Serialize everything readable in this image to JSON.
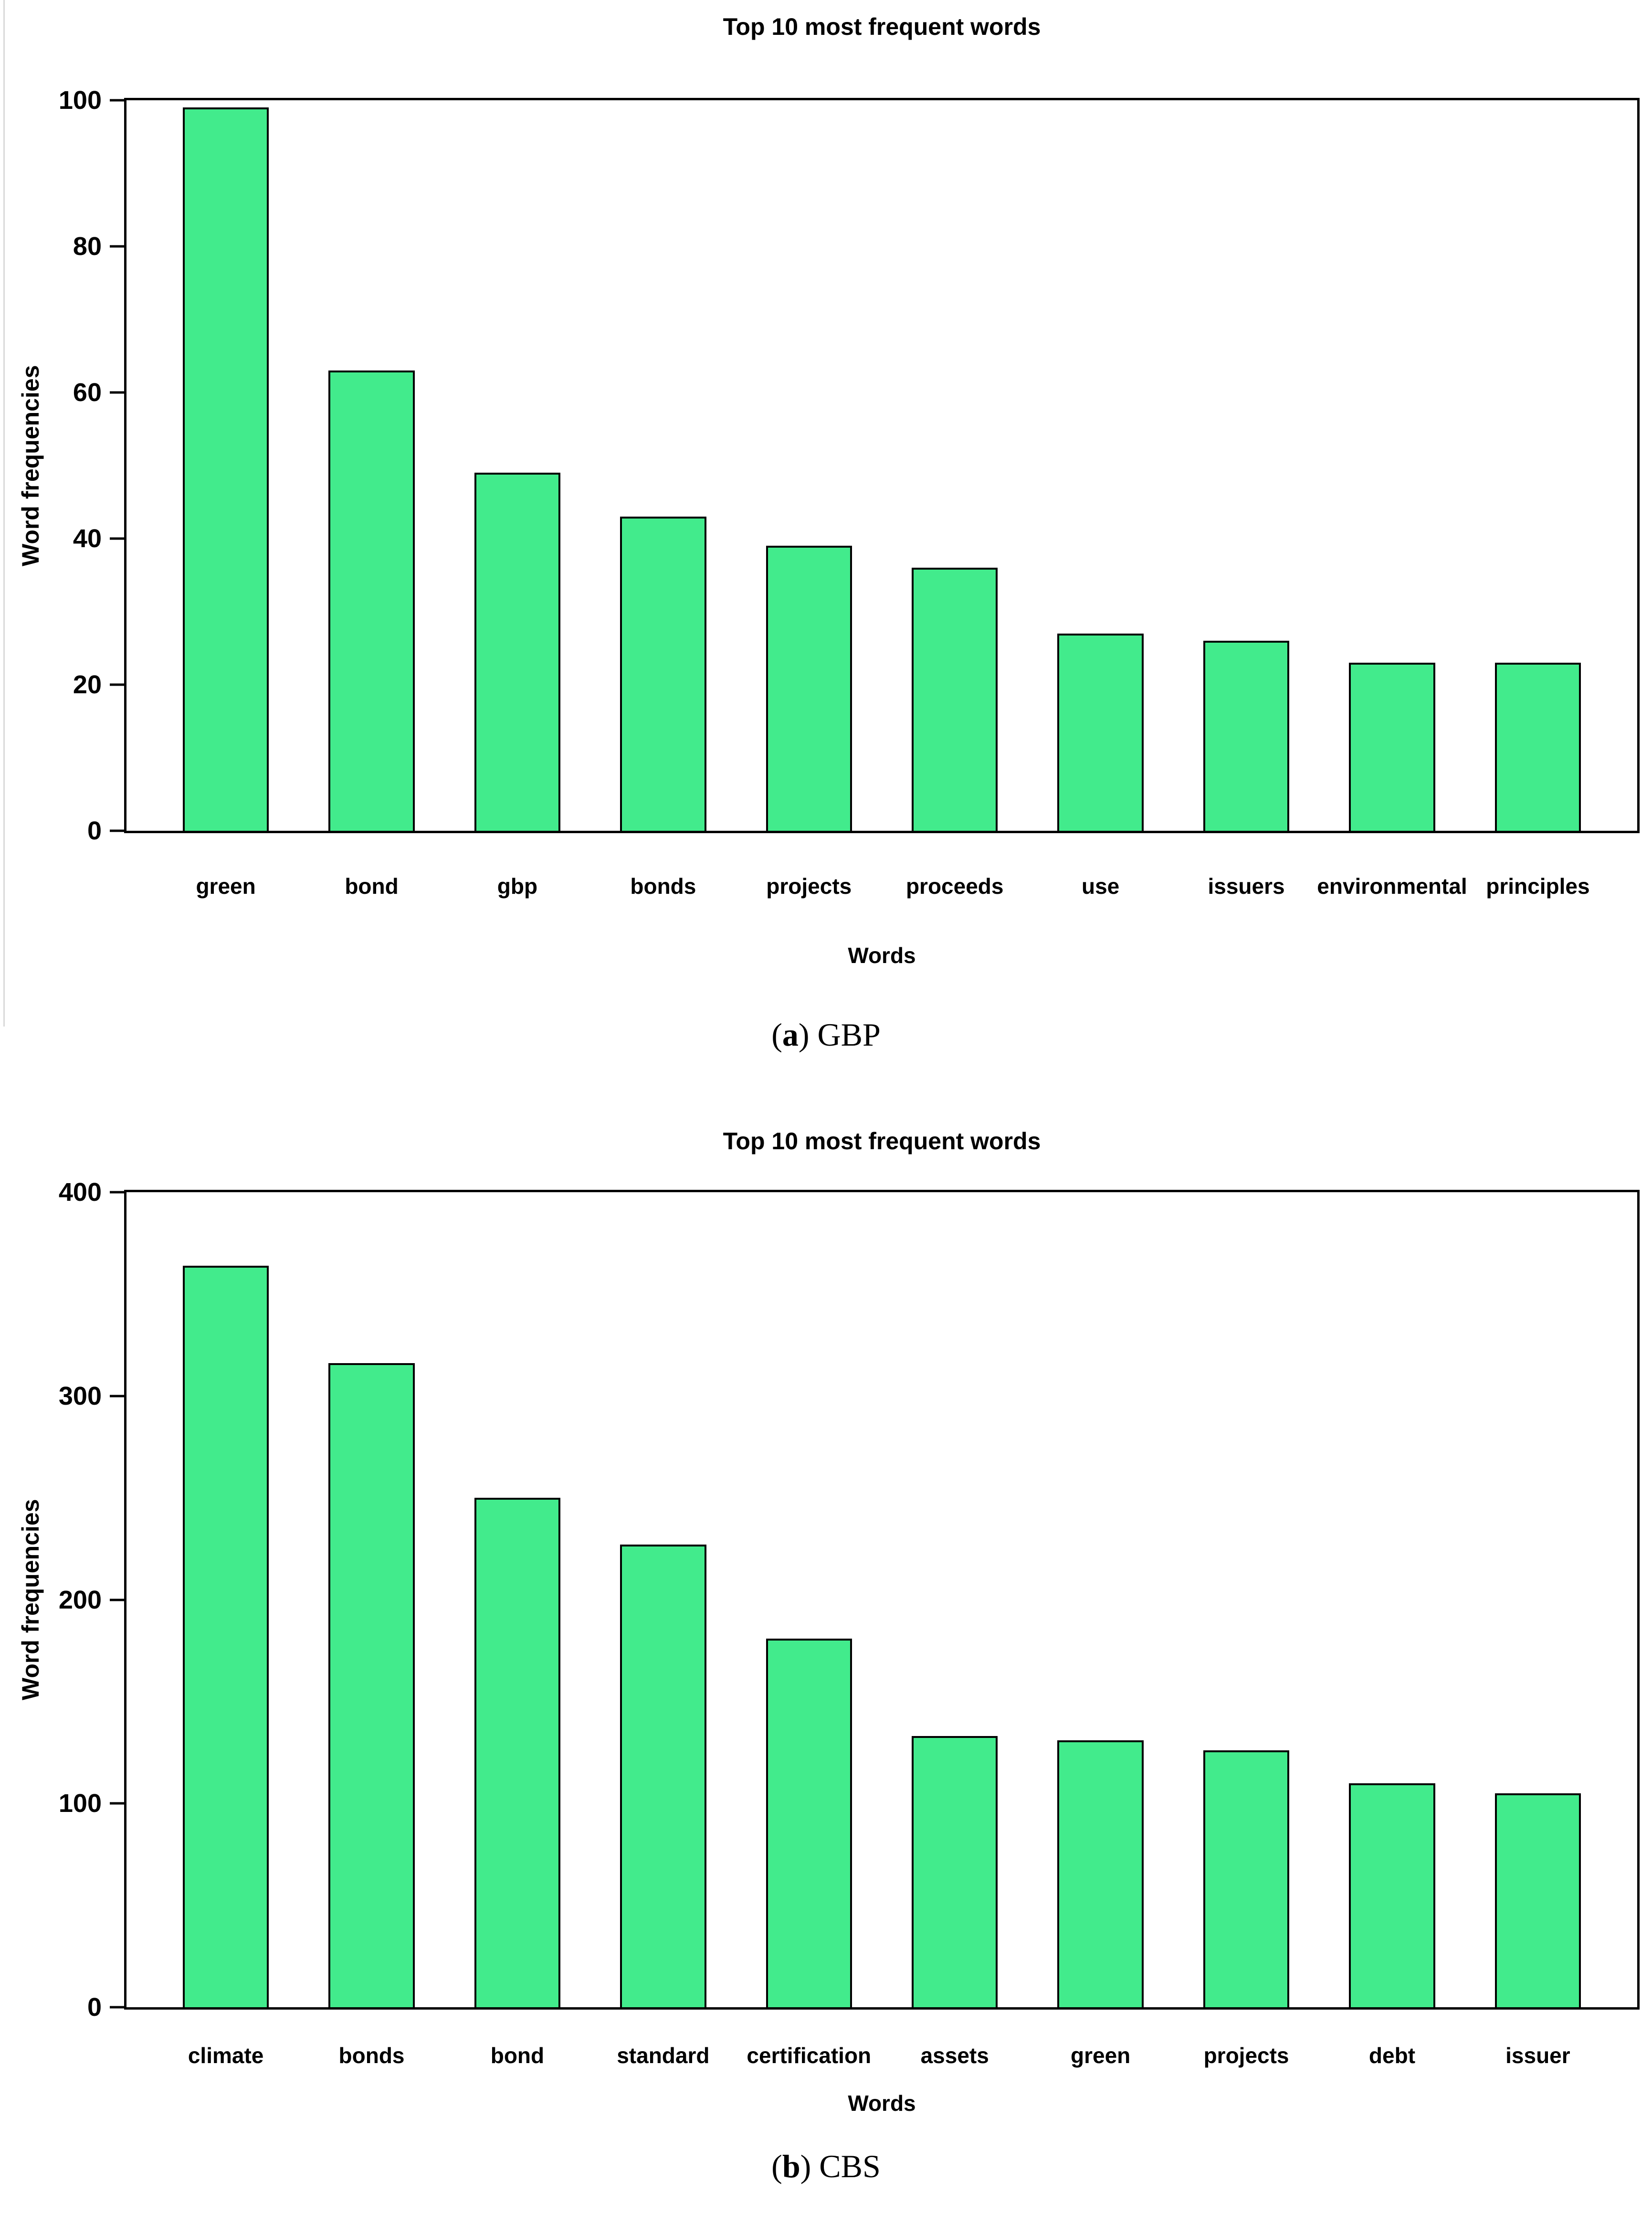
{
  "page": {
    "background": "#ffffff",
    "text_color": "#000000"
  },
  "figures": [
    {
      "id": "a",
      "caption": {
        "open": "(",
        "letter": "a",
        "close": ")",
        "text": " GBP"
      }
    },
    {
      "id": "b",
      "caption": {
        "open": "(",
        "letter": "b",
        "close": ")",
        "text": " CBS"
      }
    }
  ],
  "chart_data": [
    {
      "type": "bar",
      "title": "Top 10 most frequent words",
      "xlabel": "Words",
      "ylabel": "Word frequencies",
      "categories": [
        "green",
        "bond",
        "gbp",
        "bonds",
        "projects",
        "proceeds",
        "use",
        "issuers",
        "environmental",
        "principles"
      ],
      "values": [
        99,
        63,
        49,
        43,
        39,
        36,
        27,
        26,
        23,
        23
      ],
      "ylim": [
        0,
        100
      ],
      "yticks": [
        0,
        20,
        40,
        60,
        80,
        100
      ],
      "grid": false,
      "legend": "none",
      "bar_color": "#42EB8C",
      "bar_border_color": "#000000"
    },
    {
      "type": "bar",
      "title": "Top 10 most frequent words",
      "xlabel": "Words",
      "ylabel": "Word frequencies",
      "categories": [
        "climate",
        "bonds",
        "bond",
        "standard",
        "certification",
        "assets",
        "green",
        "projects",
        "debt",
        "issuer"
      ],
      "values": [
        364,
        316,
        250,
        227,
        181,
        133,
        131,
        126,
        110,
        105
      ],
      "ylim": [
        0,
        400
      ],
      "yticks": [
        0,
        100,
        200,
        300,
        400
      ],
      "grid": false,
      "legend": "none",
      "bar_color": "#42EB8C",
      "bar_border_color": "#000000"
    }
  ]
}
